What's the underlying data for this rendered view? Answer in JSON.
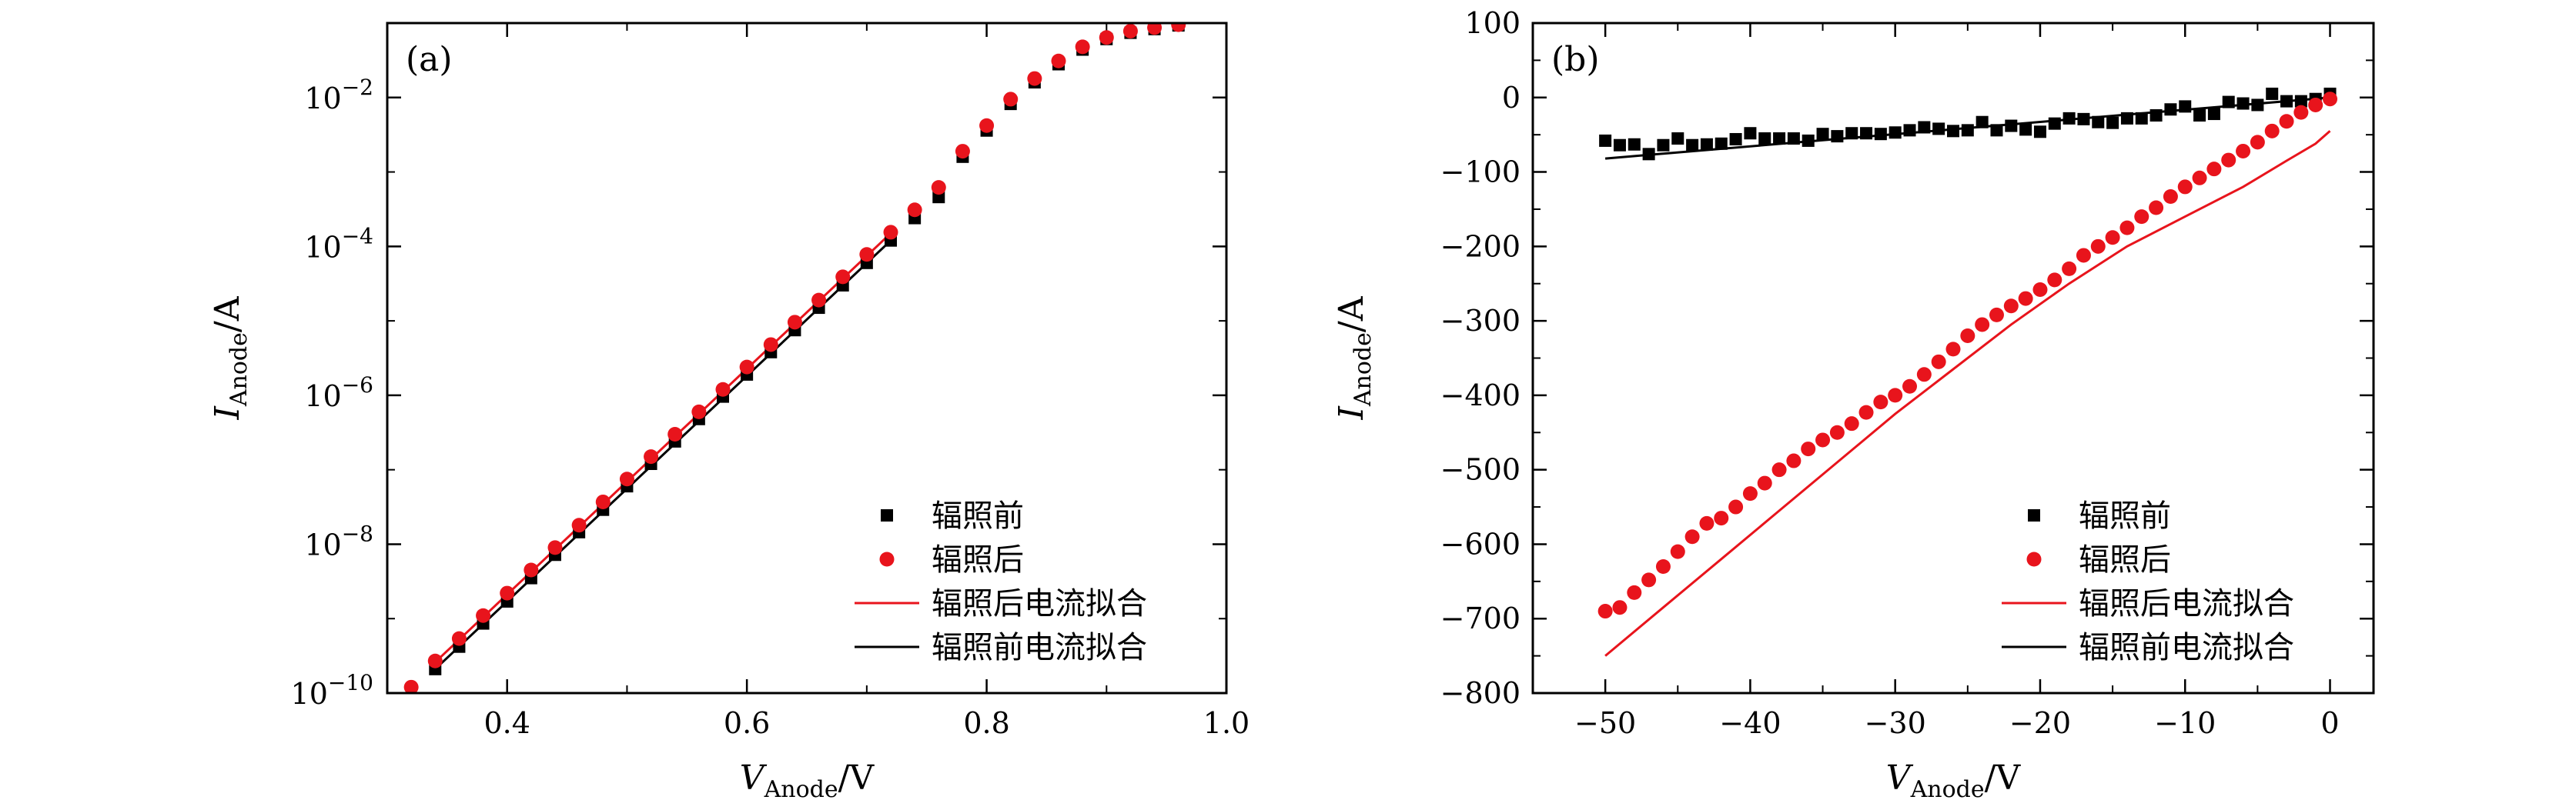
{
  "chart_data": [
    {
      "type": "scatter",
      "panel_label": "(a)",
      "xlabel_main": "V",
      "xlabel_sub": "Anode",
      "xlabel_unit": "/V",
      "ylabel_main": "I",
      "ylabel_sub": "Anode",
      "ylabel_unit": "/A",
      "xlim": [
        0.3,
        1.0
      ],
      "ylim_log10": [
        -10,
        -1
      ],
      "y_scale": "log",
      "x_ticks": [
        0.4,
        0.6,
        0.8,
        1.0
      ],
      "x_tick_labels": [
        "0.4",
        "0.6",
        "0.8",
        "1.0"
      ],
      "y_ticks_log10": [
        -10,
        -8,
        -6,
        -4,
        -2
      ],
      "y_tick_labels": [
        {
          "base": "10",
          "exp": "−10"
        },
        {
          "base": "10",
          "exp": "−8"
        },
        {
          "base": "10",
          "exp": "−6"
        },
        {
          "base": "10",
          "exp": "−4"
        },
        {
          "base": "10",
          "exp": "−2"
        }
      ],
      "legend_position": "bottom-right",
      "series": [
        {
          "name": "辐照前",
          "kind": "markers",
          "marker": "square",
          "color": "#000000",
          "x": [
            0.34,
            0.36,
            0.38,
            0.4,
            0.42,
            0.44,
            0.46,
            0.48,
            0.5,
            0.52,
            0.54,
            0.56,
            0.58,
            0.6,
            0.62,
            0.64,
            0.66,
            0.68,
            0.7,
            0.72,
            0.74,
            0.76,
            0.78,
            0.8,
            0.82,
            0.84,
            0.86,
            0.88,
            0.9,
            0.92,
            0.94,
            0.96
          ],
          "y": [
            2.1e-10,
            4.2e-10,
            8.6e-10,
            1.7e-09,
            3.5e-09,
            7.2e-09,
            1.45e-08,
            2.9e-08,
            6e-08,
            1.2e-07,
            2.4e-07,
            4.8e-07,
            9.6e-07,
            1.9e-06,
            3.8e-06,
            7.5e-06,
            1.5e-05,
            3e-05,
            6e-05,
            0.00012,
            0.00024,
            0.00046,
            0.0016,
            0.0036,
            0.0082,
            0.016,
            0.028,
            0.044,
            0.061,
            0.074,
            0.083,
            0.093
          ]
        },
        {
          "name": "辐照后",
          "kind": "markers",
          "marker": "circle",
          "color": "#e8141c",
          "x": [
            0.32,
            0.34,
            0.36,
            0.38,
            0.4,
            0.42,
            0.44,
            0.46,
            0.48,
            0.5,
            0.52,
            0.54,
            0.56,
            0.58,
            0.6,
            0.62,
            0.64,
            0.66,
            0.68,
            0.7,
            0.72,
            0.74,
            0.76,
            0.78,
            0.8,
            0.82,
            0.84,
            0.86,
            0.88,
            0.9,
            0.92,
            0.94,
            0.96
          ],
          "y": [
            1.2e-10,
            2.7e-10,
            5.4e-10,
            1.1e-09,
            2.2e-09,
            4.5e-09,
            9e-09,
            1.8e-08,
            3.7e-08,
            7.5e-08,
            1.5e-07,
            3e-07,
            6e-07,
            1.2e-06,
            2.4e-06,
            4.8e-06,
            9.6e-06,
            1.9e-05,
            3.9e-05,
            7.8e-05,
            0.000155,
            0.00031,
            0.00062,
            0.0019,
            0.0042,
            0.0095,
            0.018,
            0.031,
            0.048,
            0.064,
            0.078,
            0.087,
            0.095
          ]
        },
        {
          "name": "辐照后电流拟合",
          "kind": "line",
          "color": "#e8141c",
          "x": [
            0.34,
            0.72
          ],
          "y": [
            2.6e-10,
            0.00015
          ]
        },
        {
          "name": "辐照前电流拟合",
          "kind": "line",
          "color": "#000000",
          "x": [
            0.34,
            0.72
          ],
          "y": [
            2.1e-10,
            0.00012
          ]
        }
      ]
    },
    {
      "type": "scatter",
      "panel_label": "(b)",
      "xlabel_main": "V",
      "xlabel_sub": "Anode",
      "xlabel_unit": "/V",
      "ylabel_main": "I",
      "ylabel_sub": "Anode",
      "ylabel_unit": "/A",
      "xlim": [
        -55,
        3
      ],
      "ylim": [
        -800,
        100
      ],
      "x_ticks": [
        -50,
        -40,
        -30,
        -20,
        -10,
        0
      ],
      "x_tick_labels": [
        "−50",
        "−40",
        "−30",
        "−20",
        "−10",
        "0"
      ],
      "y_ticks": [
        100,
        0,
        -100,
        -200,
        -300,
        -400,
        -500,
        -600,
        -700,
        -800
      ],
      "y_tick_labels": [
        "100",
        "0",
        "−100",
        "−200",
        "−300",
        "−400",
        "−500",
        "−600",
        "−700",
        "−800"
      ],
      "legend_position": "bottom-right",
      "series": [
        {
          "name": "辐照前",
          "kind": "markers",
          "marker": "square",
          "color": "#000000",
          "x": [
            -50,
            -49,
            -48,
            -47,
            -46,
            -45,
            -44,
            -43,
            -42,
            -41,
            -40,
            -39,
            -38,
            -37,
            -36,
            -35,
            -34,
            -33,
            -32,
            -31,
            -30,
            -29,
            -28,
            -27,
            -26,
            -25,
            -24,
            -23,
            -22,
            -21,
            -20,
            -19,
            -18,
            -17,
            -16,
            -15,
            -14,
            -13,
            -12,
            -11,
            -10,
            -9,
            -8,
            -7,
            -6,
            -5,
            -4,
            -3,
            -2,
            -1,
            0
          ],
          "y": [
            -58,
            -64,
            -63,
            -76,
            -64,
            -55,
            -64,
            -63,
            -62,
            -56,
            -48,
            -55,
            -55,
            -55,
            -58,
            -49,
            -52,
            -48,
            -48,
            -49,
            -47,
            -44,
            -40,
            -42,
            -45,
            -44,
            -33,
            -44,
            -38,
            -43,
            -46,
            -35,
            -28,
            -29,
            -33,
            -34,
            -28,
            -28,
            -24,
            -16,
            -12,
            -24,
            -22,
            -6,
            -8,
            -10,
            5,
            -5,
            -5,
            -2,
            5
          ]
        },
        {
          "name": "辐照后",
          "kind": "markers",
          "marker": "circle",
          "color": "#e8141c",
          "x": [
            -50,
            -49,
            -48,
            -47,
            -46,
            -45,
            -44,
            -43,
            -42,
            -41,
            -40,
            -39,
            -38,
            -37,
            -36,
            -35,
            -34,
            -33,
            -32,
            -31,
            -30,
            -29,
            -28,
            -27,
            -26,
            -25,
            -24,
            -23,
            -22,
            -21,
            -20,
            -19,
            -18,
            -17,
            -16,
            -15,
            -14,
            -13,
            -12,
            -11,
            -10,
            -9,
            -8,
            -7,
            -6,
            -5,
            -4,
            -3,
            -2,
            -1,
            0
          ],
          "y": [
            -690,
            -685,
            -665,
            -648,
            -630,
            -610,
            -590,
            -572,
            -565,
            -550,
            -532,
            -518,
            -500,
            -488,
            -472,
            -460,
            -450,
            -438,
            -423,
            -409,
            -400,
            -388,
            -372,
            -355,
            -338,
            -320,
            -305,
            -292,
            -280,
            -270,
            -258,
            -245,
            -230,
            -212,
            -200,
            -188,
            -175,
            -160,
            -148,
            -133,
            -120,
            -108,
            -96,
            -84,
            -72,
            -60,
            -45,
            -32,
            -20,
            -10,
            -2
          ]
        },
        {
          "name": "辐照后电流拟合",
          "kind": "line",
          "color": "#e8141c",
          "x": [
            -50,
            -46,
            -42,
            -38,
            -34,
            -30,
            -26,
            -22,
            -18,
            -14,
            -10,
            -6,
            -3,
            -1,
            0
          ],
          "y": [
            -750,
            -685,
            -620,
            -555,
            -490,
            -425,
            -365,
            -305,
            -250,
            -200,
            -160,
            -120,
            -85,
            -62,
            -45
          ]
        },
        {
          "name": "辐照前电流拟合",
          "kind": "line",
          "color": "#000000",
          "x": [
            -50,
            0
          ],
          "y": [
            -82,
            0
          ]
        }
      ]
    }
  ]
}
